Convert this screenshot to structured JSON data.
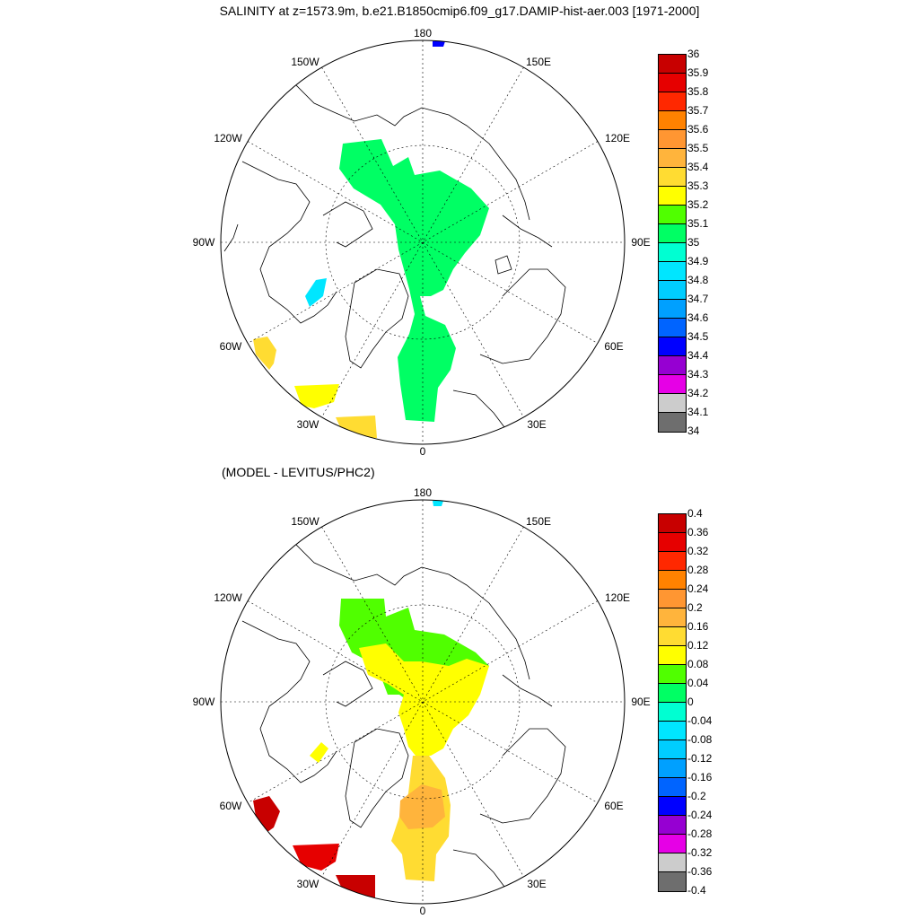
{
  "title": "SALINITY at z=1573.9m, b.e21.B1850cmip6.f09_g17.DAMIP-hist-aer.003 [1971-2000]",
  "subtitle": "(MODEL - LEVITUS/PHC2)",
  "lon_labels": [
    "180",
    "150E",
    "120E",
    "90E",
    "60E",
    "30E",
    "0",
    "30W",
    "60W",
    "90W",
    "120W",
    "150W"
  ],
  "colors": [
    "#6e6e6e",
    "#cccccc",
    "#e600e6",
    "#9600d2",
    "#0000ff",
    "#0064ff",
    "#00a0ff",
    "#00cdff",
    "#00e6ff",
    "#00ffd2",
    "#00ff64",
    "#50ff00",
    "#ffff00",
    "#ffdc32",
    "#ffb43c",
    "#ff9632",
    "#ff8200",
    "#ff2800",
    "#e60000",
    "#c80000"
  ],
  "top_colorbar": {
    "labels": [
      "36",
      "35.9",
      "35.8",
      "35.7",
      "35.6",
      "35.5",
      "35.4",
      "35.3",
      "35.2",
      "35.1",
      "35",
      "34.9",
      "34.8",
      "34.7",
      "34.6",
      "34.5",
      "34.4",
      "34.3",
      "34.2",
      "34.1",
      "34"
    ]
  },
  "bottom_colorbar": {
    "labels": [
      "0.4",
      "0.36",
      "0.32",
      "0.28",
      "0.24",
      "0.2",
      "0.16",
      "0.12",
      "0.08",
      "0.04",
      "0",
      "-0.04",
      "-0.08",
      "-0.12",
      "-0.16",
      "-0.2",
      "-0.24",
      "-0.28",
      "-0.32",
      "-0.36",
      "-0.4"
    ]
  }
}
